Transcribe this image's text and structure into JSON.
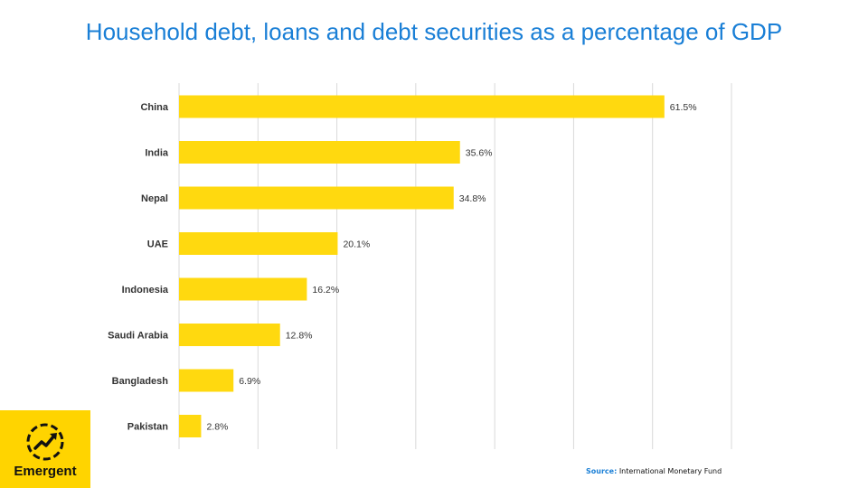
{
  "chart_data": {
    "type": "bar",
    "orientation": "horizontal",
    "title": "Household debt, loans and debt securities as a percentage of GDP",
    "categories": [
      "China",
      "India",
      "Nepal",
      "UAE",
      "Indonesia",
      "Saudi Arabia",
      "Bangladesh",
      "Pakistan"
    ],
    "values": [
      61.5,
      35.6,
      34.8,
      20.1,
      16.2,
      12.8,
      6.9,
      2.8
    ],
    "data_labels": [
      "61.5%",
      "35.6%",
      "34.8%",
      "20.1%",
      "16.2%",
      "12.8%",
      "6.9%",
      "2.8%"
    ],
    "xlim": [
      0,
      70
    ],
    "grid": true,
    "bar_color": "#ffd90f"
  },
  "logo": {
    "text": "Emergent",
    "icon": "trend-up-icon",
    "color": "#ffd400"
  },
  "source": {
    "label": "Source:",
    "text": "International Monetary Fund",
    "label_color": "#1a7fd6"
  }
}
